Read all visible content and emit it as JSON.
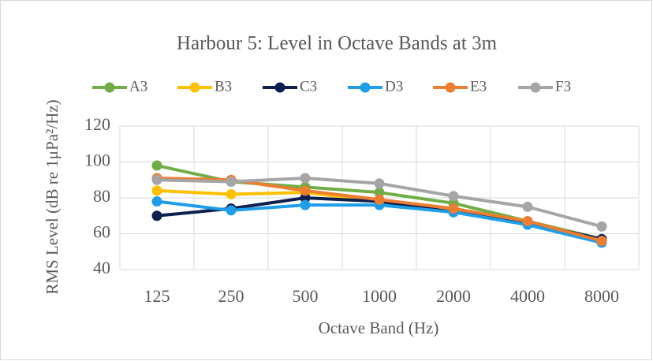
{
  "chart_data": {
    "type": "line",
    "title": "Harbour 5: Level in Octave Bands at 3m",
    "x_label": "Octave Band (Hz)",
    "y_label": "RMS Level (dB re 1μPa²/Hz)",
    "categories": [
      "125",
      "250",
      "500",
      "1000",
      "2000",
      "4000",
      "8000"
    ],
    "series": [
      {
        "name": "A3",
        "color": "#70ad47",
        "values": [
          98,
          89,
          86,
          83,
          77,
          67,
          57
        ]
      },
      {
        "name": "B3",
        "color": "#ffc000",
        "values": [
          84,
          82,
          83,
          78,
          73,
          66,
          56
        ]
      },
      {
        "name": "C3",
        "color": "#0d1f4f",
        "values": [
          70,
          74,
          80,
          78,
          72,
          66,
          57
        ]
      },
      {
        "name": "D3",
        "color": "#1e9ee8",
        "values": [
          78,
          73,
          76,
          76,
          72,
          65,
          55
        ]
      },
      {
        "name": "E3",
        "color": "#ed7d31",
        "values": [
          91,
          90,
          84,
          79,
          74,
          67,
          56
        ]
      },
      {
        "name": "F3",
        "color": "#a5a5a5",
        "values": [
          90,
          89,
          91,
          88,
          81,
          75,
          64
        ]
      }
    ],
    "ylim": [
      40,
      120
    ],
    "yticks": [
      40,
      60,
      80,
      100,
      120
    ],
    "grid": true,
    "legend": "top"
  }
}
